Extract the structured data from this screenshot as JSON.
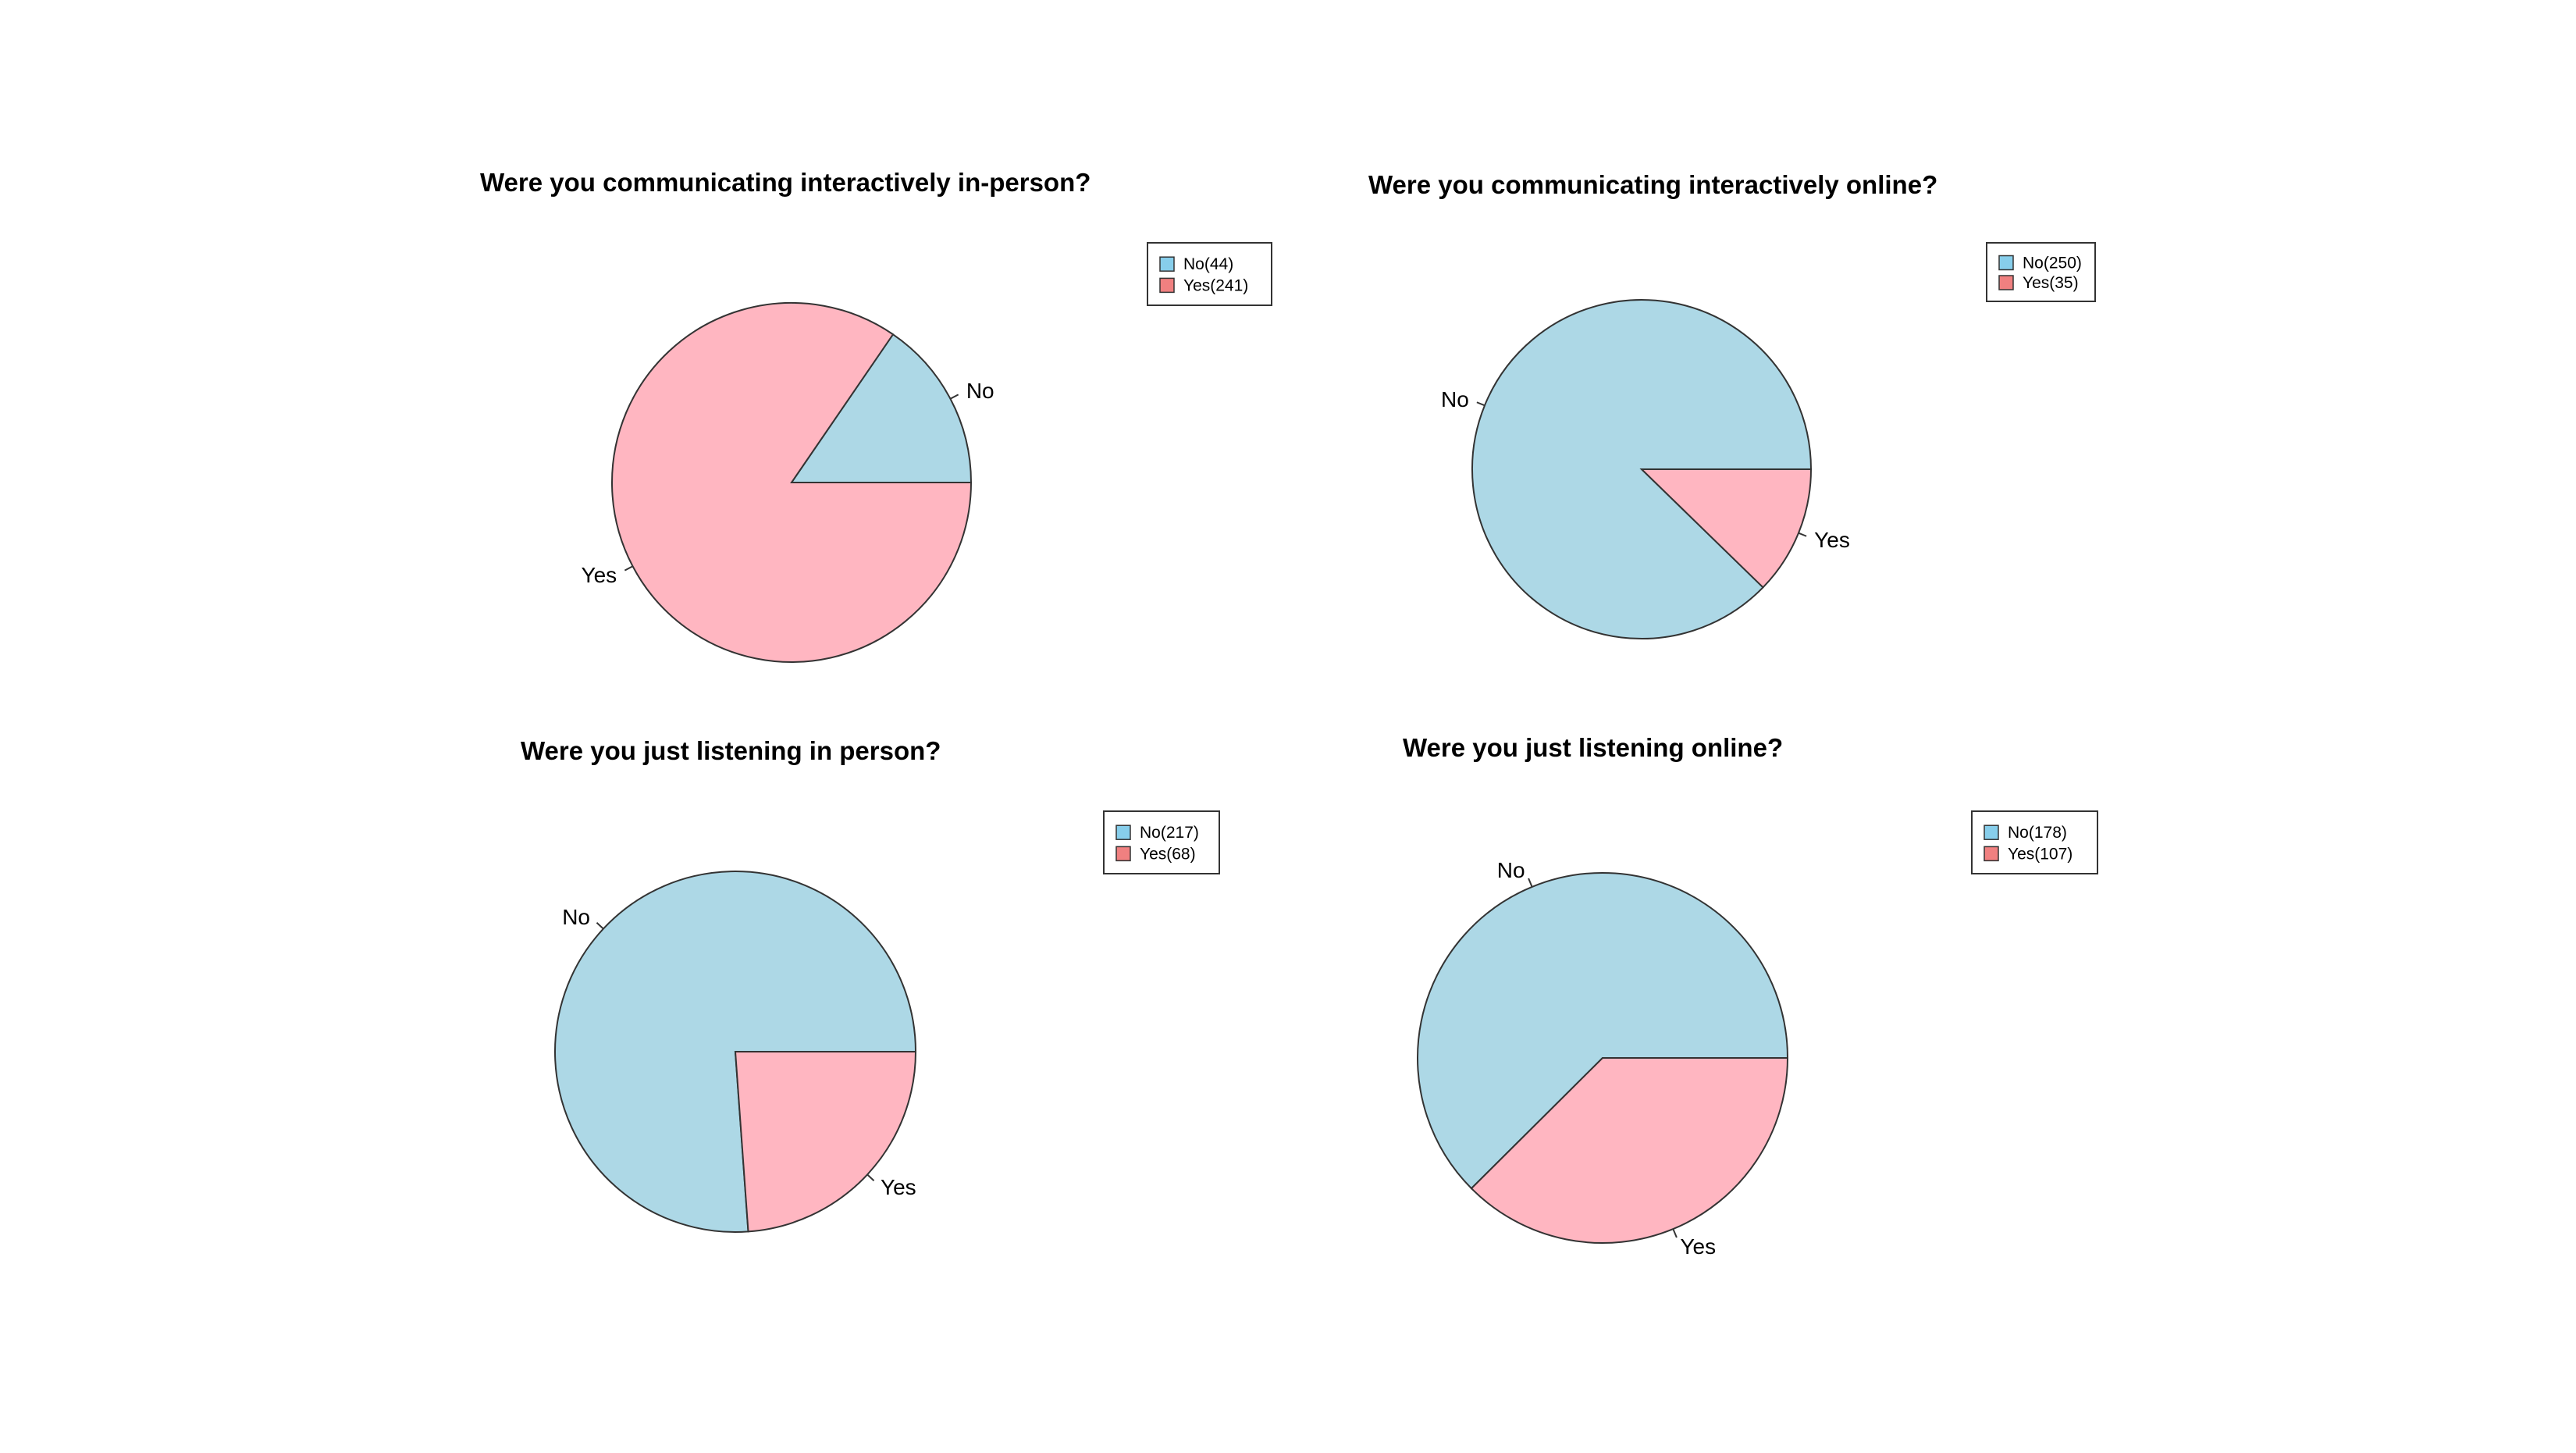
{
  "colors": {
    "No": "#add8e6",
    "Yes": "#ffb6c1",
    "legend_No": "#87ceeb",
    "legend_Yes": "#f08080",
    "outline": "#333333"
  },
  "chart_data": [
    {
      "type": "pie",
      "title": "Were you communicating interactively in-person?",
      "categories": [
        "No",
        "Yes"
      ],
      "values": [
        44,
        241
      ],
      "legend": [
        "No(44)",
        "Yes(241)"
      ],
      "legend_position": "top-right"
    },
    {
      "type": "pie",
      "title": "Were you communicating interactively online?",
      "categories": [
        "No",
        "Yes"
      ],
      "values": [
        250,
        35
      ],
      "legend": [
        "No(250)",
        "Yes(35)"
      ],
      "legend_position": "top-right"
    },
    {
      "type": "pie",
      "title": "Were you just listening in person?",
      "categories": [
        "No",
        "Yes"
      ],
      "values": [
        217,
        68
      ],
      "legend": [
        "No(217)",
        "Yes(68)"
      ],
      "legend_position": "top-right"
    },
    {
      "type": "pie",
      "title": "Were you just listening online?",
      "categories": [
        "No",
        "Yes"
      ],
      "values": [
        178,
        107
      ],
      "legend": [
        "No(178)",
        "Yes(107)"
      ],
      "legend_position": "top-right"
    }
  ]
}
